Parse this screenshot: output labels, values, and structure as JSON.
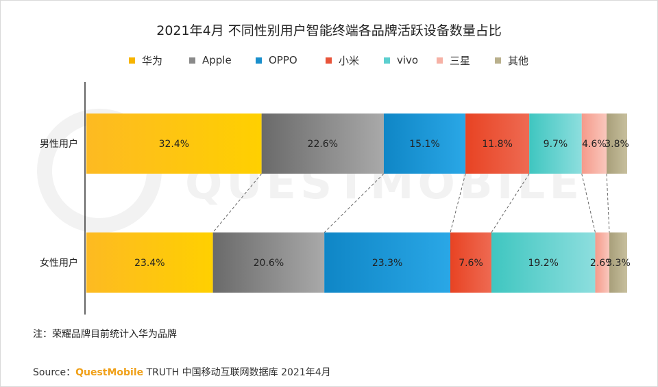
{
  "title": "2021年4月 不同性别用户智能终端各品牌活跃设备数量占比",
  "legend": [
    {
      "label": "华为",
      "color": "#f7b400"
    },
    {
      "label": "Apple",
      "color": "#8a8a8a"
    },
    {
      "label": "OPPO",
      "color": "#1a8fcc"
    },
    {
      "label": "小米",
      "color": "#e8543a"
    },
    {
      "label": "vivo",
      "color": "#5ccfcf"
    },
    {
      "label": "三星",
      "color": "#f6b1a5"
    },
    {
      "label": "其他",
      "color": "#b9b08c"
    }
  ],
  "chart_data": {
    "type": "bar",
    "orientation": "horizontal",
    "stacked": true,
    "percent": true,
    "title": "2021年4月 不同性别用户智能终端各品牌活跃设备数量占比",
    "categories": [
      "男性用户",
      "女性用户"
    ],
    "series": [
      {
        "name": "华为",
        "values": [
          32.4,
          23.4
        ],
        "labels": [
          "32.4%",
          "23.4%"
        ],
        "color": "#f7b400"
      },
      {
        "name": "Apple",
        "values": [
          22.6,
          20.6
        ],
        "labels": [
          "22.6%",
          "20.6%"
        ],
        "color": "#8a8a8a"
      },
      {
        "name": "OPPO",
        "values": [
          15.1,
          23.3
        ],
        "labels": [
          "15.1%",
          "23.3%"
        ],
        "color": "#1a8fcc"
      },
      {
        "name": "小米",
        "values": [
          11.8,
          7.6
        ],
        "labels": [
          "11.8%",
          "7.6%"
        ],
        "color": "#e8543a"
      },
      {
        "name": "vivo",
        "values": [
          9.7,
          19.2
        ],
        "labels": [
          "9.7%",
          "19.2%"
        ],
        "color": "#5ccfcf"
      },
      {
        "name": "三星",
        "values": [
          4.6,
          2.6
        ],
        "labels": [
          "4.6%",
          "2.6%"
        ],
        "color": "#f6b1a5"
      },
      {
        "name": "其他",
        "values": [
          3.8,
          3.3
        ],
        "labels": [
          "3.8%",
          "3.3%"
        ],
        "color": "#b9b08c"
      }
    ],
    "xlim": [
      0,
      100
    ],
    "legend_position": "top",
    "connector_lines": "dashed"
  },
  "note": "注：荣耀品牌目前统计入华为品牌",
  "source": {
    "prefix": "Source：",
    "brand": "QuestMobile",
    "rest": " TRUTH 中国移动互联网数据库 2021年4月"
  },
  "watermark": "QUESTMOBILE"
}
